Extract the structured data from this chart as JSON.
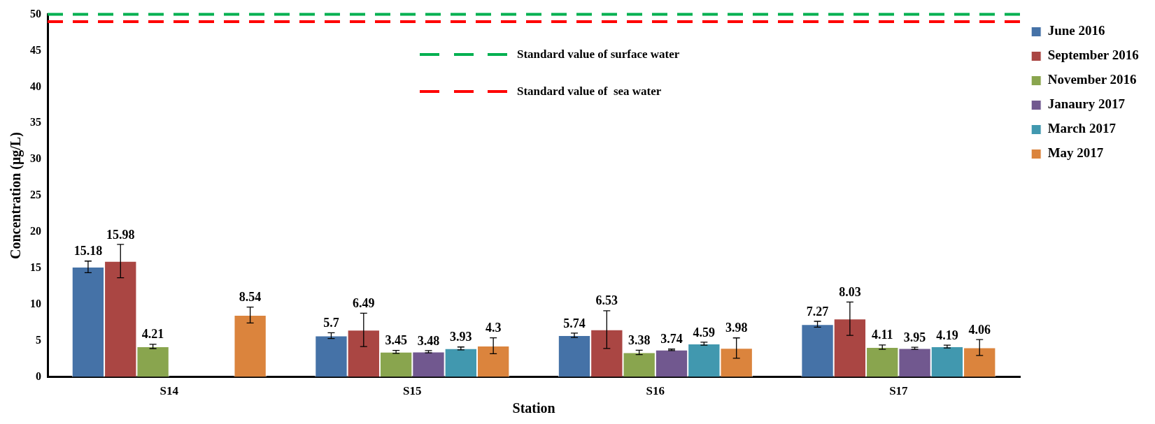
{
  "chart_data": {
    "type": "bar",
    "xlabel": "Station",
    "ylabel": "Concentration (μg/L)",
    "categories": [
      "S14",
      "S15",
      "S16",
      "S17"
    ],
    "series": [
      {
        "name": "June 2016",
        "color": "#4572a7",
        "values": [
          15.18,
          5.7,
          5.74,
          7.27
        ],
        "errors": [
          0.8,
          0.4,
          0.3,
          0.4
        ]
      },
      {
        "name": "September 2016",
        "color": "#aa4643",
        "values": [
          15.98,
          6.49,
          6.53,
          8.03
        ],
        "errors": [
          2.3,
          2.3,
          2.6,
          2.3
        ]
      },
      {
        "name": "November 2016",
        "color": "#89a54e",
        "values": [
          4.21,
          3.45,
          3.38,
          4.11
        ],
        "errors": [
          0.3,
          0.2,
          0.3,
          0.3
        ]
      },
      {
        "name": "Janaury 2017",
        "color": "#71588f",
        "values": [
          null,
          3.48,
          3.74,
          3.95
        ],
        "errors": [
          null,
          0.15,
          0.1,
          0.15
        ]
      },
      {
        "name": "March 2017",
        "color": "#4198af",
        "values": [
          null,
          3.93,
          4.59,
          4.19
        ],
        "errors": [
          null,
          0.2,
          0.2,
          0.2
        ]
      },
      {
        "name": "May 2017",
        "color": "#db843d",
        "values": [
          8.54,
          4.3,
          3.98,
          4.06
        ],
        "errors": [
          1.1,
          1.1,
          1.4,
          1.1
        ]
      }
    ],
    "ylim": [
      0,
      50
    ],
    "yticks": [
      0,
      5,
      10,
      15,
      20,
      25,
      30,
      35,
      40,
      45,
      50
    ],
    "grid": false,
    "legend": "right",
    "data_labels": true,
    "ref_lines": [
      {
        "axis": "y",
        "value": 50,
        "label": "Standard value of surface water",
        "color": "#00b050",
        "line_style": "dashed"
      },
      {
        "axis": "y",
        "value": 49,
        "label": "Standard value of  sea water",
        "color": "#ff0000",
        "line_style": "dashed"
      }
    ]
  }
}
